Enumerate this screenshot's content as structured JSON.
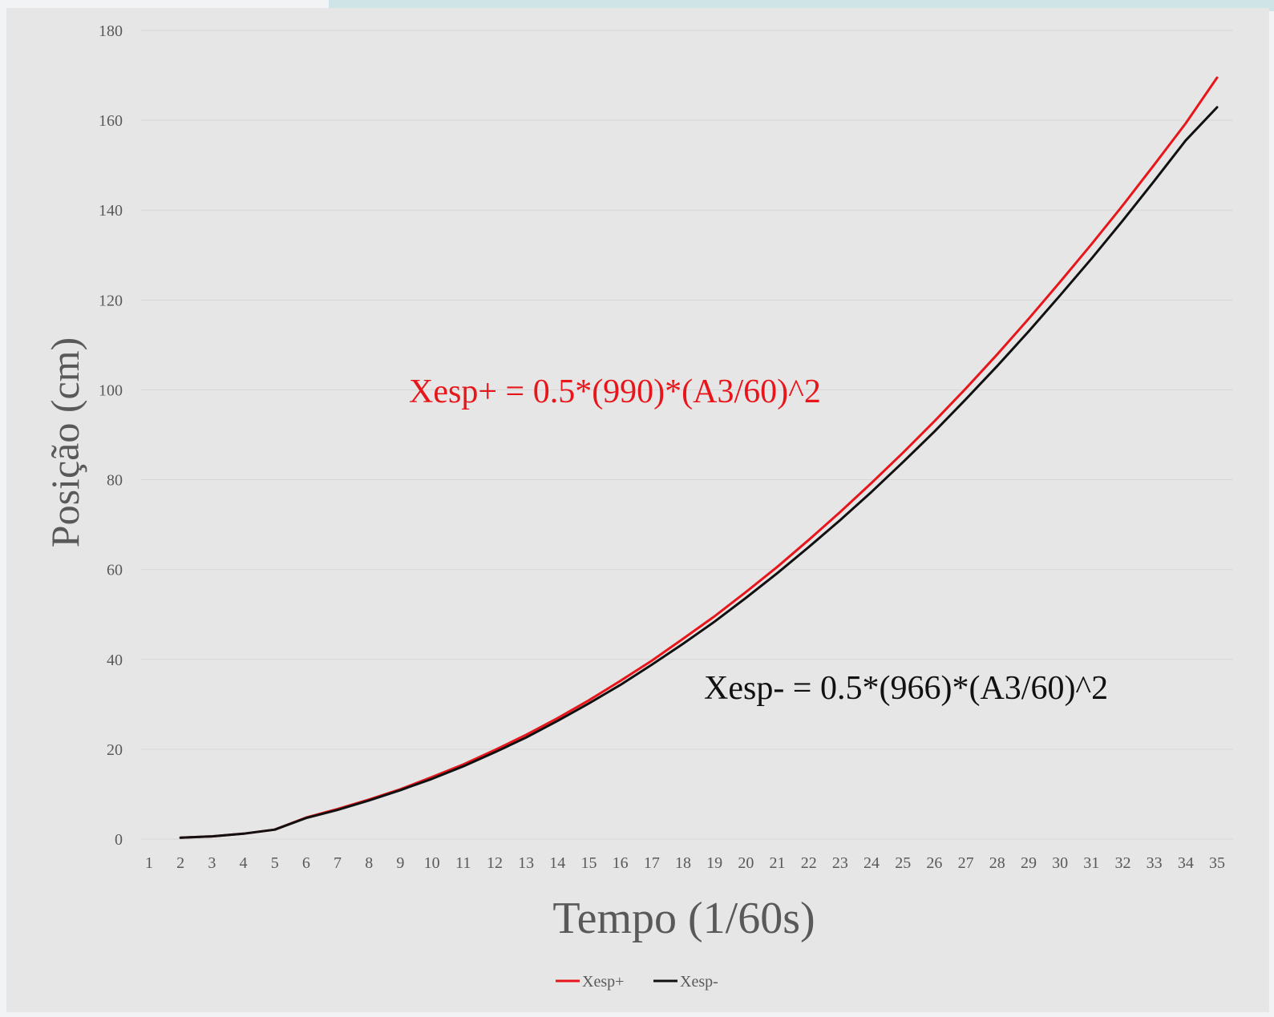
{
  "chart_data": {
    "type": "line",
    "title": "",
    "xlabel": "Tempo (1/60s)",
    "ylabel": "Posição (cm)",
    "categories": [
      1,
      2,
      3,
      4,
      5,
      6,
      7,
      8,
      9,
      10,
      11,
      12,
      13,
      14,
      15,
      16,
      17,
      18,
      19,
      20,
      21,
      22,
      23,
      24,
      25,
      26,
      27,
      28,
      29,
      30,
      31,
      32,
      33,
      34,
      35
    ],
    "ylim": [
      0,
      180
    ],
    "yticks": [
      0,
      20,
      40,
      60,
      80,
      100,
      120,
      140,
      160,
      180
    ],
    "grid": true,
    "legend_position": "bottom",
    "series": [
      {
        "name": "Xesp+",
        "color": "#e8161b",
        "values": [
          null,
          0.3,
          0.6,
          1.2,
          2.1,
          4.8,
          6.7,
          8.8,
          11.1,
          13.8,
          16.6,
          19.8,
          23.2,
          26.9,
          30.9,
          35.2,
          39.7,
          44.6,
          49.6,
          55.0,
          60.6,
          66.6,
          72.8,
          79.3,
          86.0,
          93.0,
          100.3,
          107.9,
          115.8,
          124.0,
          132.4,
          141.1,
          150.1,
          159.3,
          169.5
        ]
      },
      {
        "name": "Xesp-",
        "color": "#111111",
        "values": [
          null,
          0.3,
          0.6,
          1.2,
          2.1,
          4.7,
          6.5,
          8.6,
          10.9,
          13.4,
          16.2,
          19.3,
          22.6,
          26.3,
          30.2,
          34.3,
          38.8,
          43.5,
          48.4,
          53.7,
          59.2,
          65.0,
          71.0,
          77.3,
          83.9,
          90.7,
          97.9,
          105.3,
          113.0,
          121.0,
          129.2,
          137.7,
          146.5,
          155.5,
          162.9
        ]
      }
    ],
    "annotations": [
      {
        "text": "Xesp+ = 0.5*(990)*(A3/60)^2",
        "color": "#e8161b"
      },
      {
        "text": "Xesp- = 0.5*(966)*(A3/60)^2",
        "color": "#111111"
      }
    ]
  }
}
